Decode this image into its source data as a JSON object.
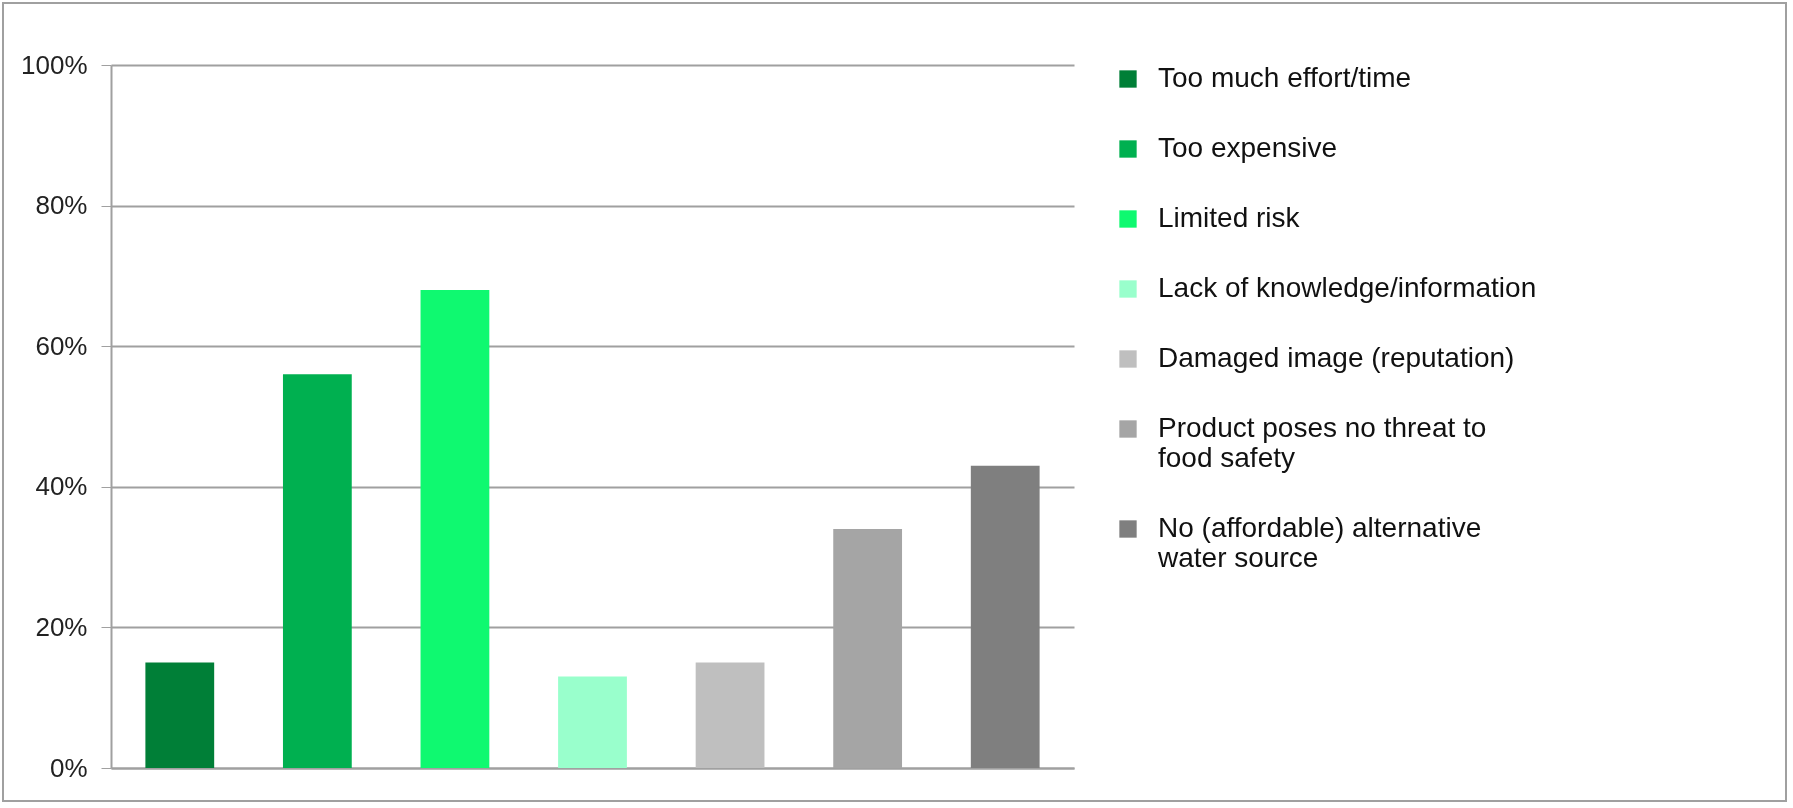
{
  "chart_data": {
    "type": "bar",
    "categories": [
      null,
      null,
      null,
      null,
      null,
      null,
      null
    ],
    "series": [
      {
        "name": "Too much effort/time",
        "color": "#007f37",
        "values": [
          15,
          null,
          null,
          null,
          null,
          null,
          null
        ]
      },
      {
        "name": "Too expensive",
        "color": "#00b050",
        "values": [
          null,
          56,
          null,
          null,
          null,
          null,
          null
        ]
      },
      {
        "name": "Limited risk",
        "color": "#0ff970",
        "values": [
          null,
          null,
          68,
          null,
          null,
          null,
          null
        ]
      },
      {
        "name": "Lack of knowledge/information",
        "color": "#99ffcc",
        "values": [
          null,
          null,
          null,
          13,
          null,
          null,
          null
        ]
      },
      {
        "name": "Damaged image (reputation)",
        "color": "#bfbfbf",
        "values": [
          null,
          null,
          null,
          null,
          15,
          null,
          null
        ]
      },
      {
        "name": "Product poses no threat to food safety",
        "color": "#a5a5a5",
        "values": [
          null,
          null,
          null,
          null,
          null,
          34,
          null
        ]
      },
      {
        "name": "No (affordable) alternative water source",
        "color": "#7f7f7f",
        "values": [
          null,
          null,
          null,
          null,
          null,
          null,
          43
        ]
      }
    ],
    "ylim": [
      0,
      100
    ],
    "yticks": [
      {
        "value": 0,
        "label": "0%"
      },
      {
        "value": 20,
        "label": "20%"
      },
      {
        "value": 40,
        "label": "40%"
      },
      {
        "value": 60,
        "label": "60%"
      },
      {
        "value": 80,
        "label": "80%"
      },
      {
        "value": 100,
        "label": "100%"
      }
    ],
    "grid": "y",
    "legend": "right"
  }
}
